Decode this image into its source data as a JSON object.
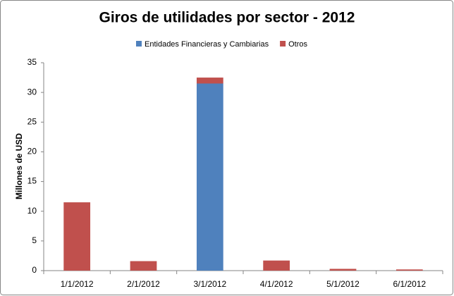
{
  "chart_data": {
    "type": "stacked_bar",
    "title": "Giros de utilidades por sector - 2012",
    "y_label": "Millones de USD",
    "categories": [
      "1/1/2012",
      "2/1/2012",
      "3/1/2012",
      "4/1/2012",
      "5/1/2012",
      "6/1/2012"
    ],
    "series": [
      {
        "name": "Entidades Financieras y Cambiarias",
        "color": "#4f81bd",
        "values": [
          0,
          0,
          31.5,
          0,
          0,
          0
        ]
      },
      {
        "name": "Otros",
        "color": "#c0504d",
        "values": [
          11.5,
          1.6,
          1.0,
          1.7,
          0.3,
          0.2
        ]
      }
    ],
    "ylim": [
      0,
      35
    ],
    "yticks": [
      0,
      5,
      10,
      15,
      20,
      25,
      30,
      35
    ],
    "grid": false,
    "legend": "top"
  }
}
